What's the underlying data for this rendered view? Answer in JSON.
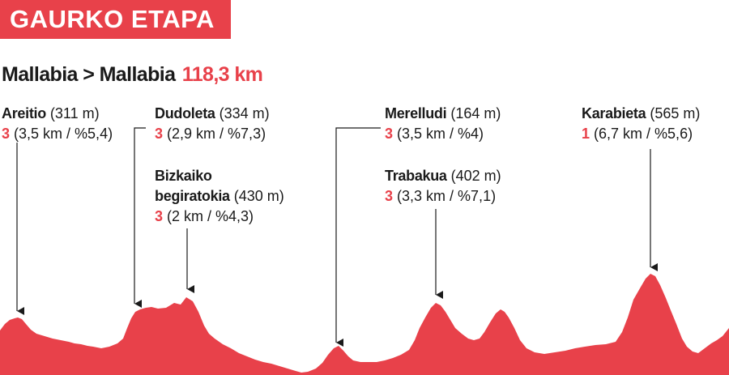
{
  "header": {
    "title": "GAURKO ETAPA"
  },
  "route": {
    "start": "Mallabia",
    "separator": ">",
    "finish": "Mallabia",
    "distance": "118,3 km"
  },
  "climbs": [
    {
      "name": "Areitio",
      "altitude": "(311 m)",
      "category": "3",
      "details": "(3,5 km / %5,4)"
    },
    {
      "name": "Dudoleta",
      "altitude": "(334 m)",
      "category": "3",
      "details": "(2,9 km / %7,3)"
    },
    {
      "name_line1": "Bizkaiko",
      "name_line2": "begiratokia",
      "altitude": "(430 m)",
      "category": "3",
      "details": "(2 km / %4,3)"
    },
    {
      "name": "Merelludi",
      "altitude": "(164 m)",
      "category": "3",
      "details": "(3,5 km / %4)"
    },
    {
      "name": "Trabakua",
      "altitude": "(402 m)",
      "category": "3",
      "details": "(3,3 km / %7,1)"
    },
    {
      "name": "Karabieta",
      "altitude": "(565 m)",
      "category": "1",
      "details": "(6,7 km / %5,6)"
    }
  ],
  "colors": {
    "accent": "#e8414a",
    "text": "#1a1a1a",
    "background": "#ffffff"
  }
}
